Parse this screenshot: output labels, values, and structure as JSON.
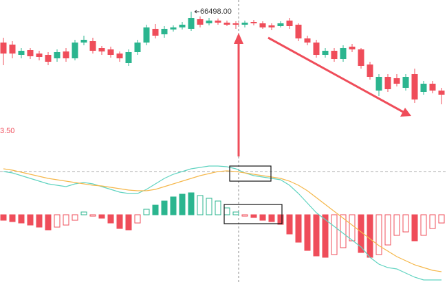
{
  "chart_data": {
    "type": "candlestick",
    "annotations": [
      "66498.00",
      "3.50"
    ],
    "up_color": "#2bb58f",
    "down_color": "#ef4d5a",
    "ylim": [
      61548,
      66923
    ],
    "open": [
      65373,
      65298,
      64923,
      65098,
      64973,
      64923,
      64798,
      65048,
      64798,
      65373,
      65423,
      65173,
      65123,
      64973,
      64623,
      65023,
      65373,
      65873,
      65673,
      65848,
      65923,
      65873,
      66223,
      66073,
      66173,
      66098,
      66073,
      66023,
      66123,
      66073,
      65998,
      65973,
      66173,
      66023,
      65523,
      65373,
      64923,
      65073,
      64773,
      65223,
      65123,
      64573,
      63623,
      64123,
      64073,
      63723,
      64223,
      63573,
      63873,
      63623
    ],
    "high": [
      65548,
      65423,
      65173,
      65173,
      65073,
      65023,
      65123,
      65173,
      65473,
      65623,
      65548,
      65248,
      65223,
      65048,
      65123,
      65473,
      66023,
      66048,
      65973,
      65998,
      66123,
      66498,
      66323,
      66273,
      66248,
      66173,
      66148,
      66173,
      66198,
      66148,
      66073,
      66148,
      66273,
      66073,
      65623,
      65473,
      65173,
      65173,
      65273,
      65323,
      65173,
      64673,
      64223,
      64223,
      64223,
      64223,
      64423,
      63973,
      63973,
      63723
    ],
    "low": [
      64548,
      64798,
      64798,
      64773,
      64723,
      64548,
      64673,
      64673,
      64723,
      65273,
      64973,
      64923,
      64823,
      64673,
      64523,
      64923,
      65273,
      65523,
      65548,
      65773,
      65848,
      65798,
      65923,
      65998,
      66023,
      65973,
      65873,
      65923,
      65998,
      65873,
      65823,
      65923,
      65873,
      65423,
      65273,
      64823,
      64823,
      64673,
      64673,
      65023,
      64423,
      64023,
      63423,
      63573,
      63773,
      63623,
      63173,
      63473,
      63523,
      63123
    ],
    "close": [
      64973,
      64973,
      65073,
      64873,
      64848,
      64673,
      65023,
      64798,
      65373,
      65473,
      65073,
      65048,
      64923,
      64798,
      65023,
      65373,
      65923,
      65623,
      65873,
      65923,
      66023,
      66273,
      66023,
      66173,
      66098,
      66023,
      66023,
      66098,
      66073,
      65923,
      65923,
      66073,
      65973,
      65523,
      65373,
      64923,
      65073,
      64773,
      65173,
      65123,
      64523,
      64123,
      64123,
      63673,
      63873,
      64123,
      63298,
      63873,
      63623,
      63473
    ],
    "macd": {
      "ylim": [
        -98,
        83
      ],
      "histogram": [
        -8,
        -10,
        -12,
        -15,
        -18,
        -22,
        -18,
        -15,
        -8,
        4,
        -2,
        -5,
        -12,
        -20,
        -22,
        -12,
        8,
        14,
        20,
        26,
        30,
        32,
        28,
        24,
        20,
        10,
        4,
        -2,
        -4,
        -8,
        -10,
        -14,
        -28,
        -40,
        -52,
        -60,
        -62,
        -58,
        -48,
        -38,
        -55,
        -62,
        -58,
        -44,
        -30,
        -25,
        -38,
        -30,
        -20,
        -12
      ],
      "series": [
        {
          "color": "#5fd3c0",
          "values": [
            63,
            61,
            57,
            53,
            49,
            45,
            43,
            41,
            45,
            47,
            45,
            41,
            37,
            33,
            31,
            31,
            37,
            45,
            53,
            59,
            63,
            67,
            69,
            71,
            71,
            70,
            67,
            61,
            57,
            55,
            53,
            51,
            43,
            31,
            17,
            3,
            -7,
            -17,
            -27,
            -37,
            -47,
            -62,
            -72,
            -77,
            -79,
            -85,
            -91,
            -95,
            -95,
            -95
          ]
        },
        {
          "color": "#f5b74a",
          "values": [
            67,
            65,
            62,
            59,
            56,
            53,
            51,
            49,
            47,
            45,
            43,
            42,
            40,
            38,
            36,
            35,
            35,
            37,
            41,
            45,
            49,
            53,
            57,
            60,
            63,
            64,
            63,
            61,
            59,
            57,
            55,
            53,
            49,
            43,
            35,
            25,
            15,
            5,
            -5,
            -15,
            -25,
            -35,
            -45,
            -53,
            -61,
            -67,
            -73,
            -77,
            -81,
            -83
          ]
        }
      ]
    }
  }
}
